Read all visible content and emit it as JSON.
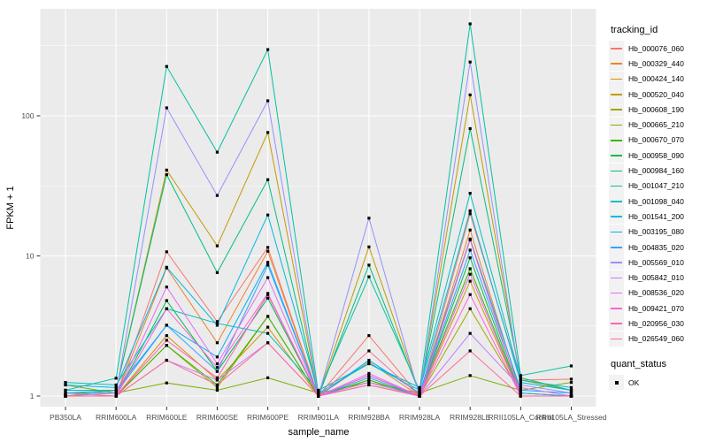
{
  "chart_data": {
    "type": "line",
    "title": "",
    "xlabel": "sample_name",
    "ylabel": "FPKM + 1",
    "y_scale": "log10",
    "y_ticks": [
      1,
      10,
      100
    ],
    "y_tick_labels": [
      "1",
      "10",
      "100"
    ],
    "y_minor_breaks": [
      3.162,
      31.62,
      316.2
    ],
    "ylim": [
      0.84,
      580
    ],
    "grid": true,
    "legend_position": "right",
    "categories": [
      "PB350LA",
      "RRIM600LA",
      "RRIM600LE",
      "RRIM600SE",
      "RRIM600PE",
      "RRIM901LA",
      "RRIM928BA",
      "RRIM928LA",
      "RRIM928LE",
      "RRII105LA_Control",
      "RRII105LA_Stressed"
    ],
    "series": [
      {
        "name": "Hb_000076_060",
        "color": "#F8766D",
        "values": [
          1.05,
          1.0,
          10.7,
          3.4,
          11.5,
          1.0,
          2.7,
          1.0,
          20.0,
          1.3,
          1.32
        ]
      },
      {
        "name": "Hb_000329_440",
        "color": "#EA8331",
        "values": [
          1.0,
          1.0,
          8.2,
          2.4,
          10.8,
          1.0,
          1.75,
          1.0,
          15.3,
          1.05,
          1.0
        ]
      },
      {
        "name": "Hb_000424_140",
        "color": "#D89000",
        "values": [
          1.0,
          1.0,
          2.7,
          1.3,
          3.1,
          1.0,
          1.2,
          1.0,
          6.6,
          1.0,
          1.0
        ]
      },
      {
        "name": "Hb_000520_040",
        "color": "#C09B00",
        "values": [
          1.0,
          1.1,
          41.0,
          11.8,
          76.0,
          1.0,
          11.6,
          1.05,
          141.0,
          1.3,
          1.1
        ]
      },
      {
        "name": "Hb_000608_190",
        "color": "#A3A500",
        "values": [
          1.0,
          1.0,
          2.3,
          1.15,
          3.7,
          1.0,
          1.3,
          1.0,
          4.2,
          1.05,
          1.0
        ]
      },
      {
        "name": "Hb_000665_210",
        "color": "#7CAE00",
        "values": [
          1.2,
          1.05,
          1.24,
          1.1,
          1.35,
          1.05,
          1.25,
          1.05,
          1.4,
          1.1,
          1.25
        ]
      },
      {
        "name": "Hb_000670_070",
        "color": "#39B600",
        "values": [
          1.0,
          1.0,
          2.3,
          1.2,
          3.7,
          1.0,
          1.3,
          1.0,
          8.1,
          1.0,
          1.0
        ]
      },
      {
        "name": "Hb_000958_090",
        "color": "#00BB4E",
        "values": [
          1.0,
          1.0,
          4.8,
          1.5,
          5.0,
          1.0,
          1.4,
          1.0,
          9.7,
          1.0,
          1.0
        ]
      },
      {
        "name": "Hb_000984_160",
        "color": "#00BF7D",
        "values": [
          1.05,
          1.1,
          38.0,
          7.6,
          35.0,
          1.0,
          8.6,
          1.05,
          81.0,
          1.35,
          1.1
        ]
      },
      {
        "name": "Hb_001047_210",
        "color": "#00C1A3",
        "values": [
          1.1,
          1.34,
          225.0,
          55.0,
          297.0,
          1.05,
          7.1,
          1.1,
          453.0,
          1.4,
          1.64
        ]
      },
      {
        "name": "Hb_001098_040",
        "color": "#00BFC4",
        "values": [
          1.25,
          1.2,
          4.2,
          3.3,
          2.8,
          1.1,
          1.7,
          1.15,
          28.0,
          1.3,
          1.15
        ]
      },
      {
        "name": "Hb_001541_200",
        "color": "#00BAE0",
        "values": [
          1.2,
          1.15,
          8.3,
          3.2,
          19.6,
          1.05,
          1.7,
          1.1,
          21.0,
          1.25,
          1.1
        ]
      },
      {
        "name": "Hb_003195_080",
        "color": "#00B0F6",
        "values": [
          1.1,
          1.1,
          3.2,
          1.9,
          9.0,
          1.0,
          1.8,
          1.05,
          13.2,
          1.1,
          1.05
        ]
      },
      {
        "name": "Hb_004835_020",
        "color": "#35A2FF",
        "values": [
          1.05,
          1.05,
          3.2,
          1.5,
          8.6,
          1.0,
          1.35,
          1.0,
          11.0,
          1.05,
          1.0
        ]
      },
      {
        "name": "Hb_005569_010",
        "color": "#9590FF",
        "values": [
          1.0,
          1.05,
          114.0,
          27.0,
          128.0,
          1.0,
          18.6,
          1.0,
          242.0,
          1.2,
          1.05
        ]
      },
      {
        "name": "Hb_005842_010",
        "color": "#C77CFF",
        "values": [
          1.0,
          1.0,
          1.8,
          1.3,
          2.4,
          1.0,
          1.25,
          1.0,
          2.8,
          1.15,
          1.0
        ]
      },
      {
        "name": "Hb_008536_020",
        "color": "#E76BF3",
        "values": [
          1.0,
          1.0,
          6.0,
          1.7,
          7.0,
          1.0,
          1.45,
          1.0,
          7.4,
          1.0,
          1.0
        ]
      },
      {
        "name": "Hb_009421_070",
        "color": "#FA62DB",
        "values": [
          1.0,
          1.0,
          4.2,
          1.6,
          5.4,
          1.0,
          1.4,
          1.0,
          5.3,
          1.0,
          1.0
        ]
      },
      {
        "name": "Hb_020956_030",
        "color": "#FF62BC",
        "values": [
          1.0,
          1.0,
          2.5,
          1.35,
          5.3,
          1.0,
          1.2,
          1.0,
          13.0,
          1.0,
          1.0
        ]
      },
      {
        "name": "Hb_026549_060",
        "color": "#FF6A98",
        "values": [
          1.0,
          1.0,
          1.8,
          1.2,
          2.4,
          1.0,
          2.1,
          1.0,
          2.1,
          1.0,
          1.0
        ]
      }
    ],
    "legend": {
      "title": "tracking_id"
    },
    "legend2": {
      "title": "quant_status",
      "items": [
        {
          "label": "OK",
          "marker": "black-square"
        }
      ]
    }
  },
  "colors": {
    "panel_background": "#EBEBEB",
    "grid_line": "#FFFFFF",
    "tick_text": "#4D4D4D",
    "axis_title_text": "#000000",
    "legend_key_background": "#F2F2F2",
    "point": "#000000"
  }
}
